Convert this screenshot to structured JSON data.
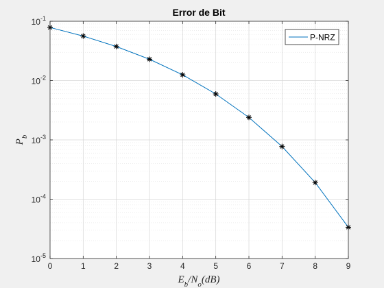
{
  "chart_data": {
    "type": "line",
    "title": "Error de Bit",
    "xlabel": "E_b/N_o(dB)",
    "ylabel": "P_b",
    "y_scale": "log",
    "xlim": [
      0,
      9
    ],
    "ylim": [
      1e-05,
      0.1
    ],
    "x_ticks": [
      "0",
      "1",
      "2",
      "3",
      "4",
      "5",
      "6",
      "7",
      "8",
      "9"
    ],
    "y_ticks": [
      {
        "base": "10",
        "exp": "-5"
      },
      {
        "base": "10",
        "exp": "-4"
      },
      {
        "base": "10",
        "exp": "-3"
      },
      {
        "base": "10",
        "exp": "-2"
      },
      {
        "base": "10",
        "exp": "-1"
      }
    ],
    "grid": true,
    "minor_grid": true,
    "legend_position": "top-right",
    "series": [
      {
        "name": "P-NRZ",
        "line_color": "#0072bd",
        "marker": "asterisk",
        "marker_color": "#000000",
        "x": [
          0,
          1,
          2,
          3,
          4,
          5,
          6,
          7,
          8,
          9
        ],
        "y": [
          0.0786,
          0.0563,
          0.0375,
          0.0229,
          0.0125,
          0.00595,
          0.00239,
          0.000773,
          0.000191,
          3.36e-05
        ]
      }
    ]
  }
}
